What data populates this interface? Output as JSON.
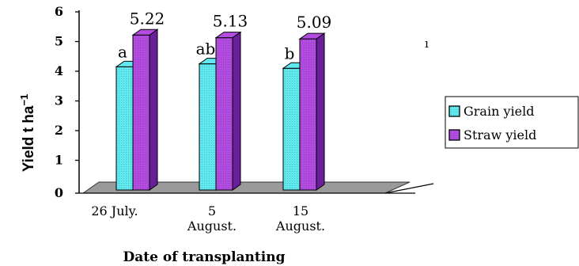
{
  "chart_data": {
    "type": "bar",
    "categories": [
      [
        "26 July."
      ],
      [
        "5",
        "August."
      ],
      [
        "15",
        "August."
      ]
    ],
    "series": [
      {
        "name": "Grain yield",
        "values": [
          4.15,
          4.25,
          4.1
        ],
        "color": "#5fe8ee",
        "side": "#2aaab0"
      },
      {
        "name": "Straw yield",
        "values": [
          5.22,
          5.13,
          5.09
        ],
        "color": "#b24be0",
        "side": "#6a1f9a"
      }
    ],
    "value_labels": [
      "5.22",
      "5.13",
      "5.09"
    ],
    "letters": [
      "a",
      "ab",
      "b"
    ],
    "ylabel": "Yield t ha",
    "ylabel_sup": "−1",
    "xlabel": "Date of transplanting",
    "ylim": [
      0,
      6
    ],
    "yticks": [
      0,
      1,
      2,
      3,
      4,
      5,
      6
    ],
    "legend_placement": "right",
    "floor_color": "#9a9a9a",
    "stray_mark": "ı"
  }
}
